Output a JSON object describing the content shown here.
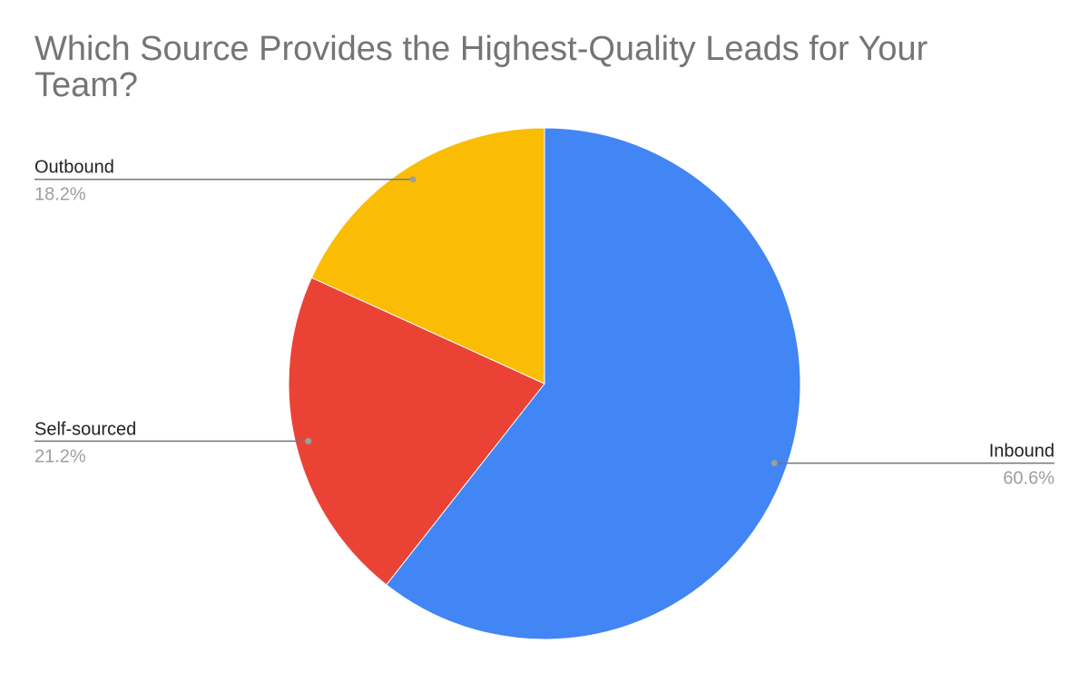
{
  "chart_data": {
    "type": "pie",
    "title": "Which Source Provides the Highest-Quality Leads for Your Team?",
    "categories": [
      "Inbound",
      "Self-sourced",
      "Outbound"
    ],
    "values": [
      60.6,
      21.2,
      18.2
    ],
    "value_labels": [
      "60.6%",
      "21.2%",
      "18.2%"
    ],
    "colors": [
      "#4285f4",
      "#ea4335",
      "#fbbc04"
    ]
  }
}
